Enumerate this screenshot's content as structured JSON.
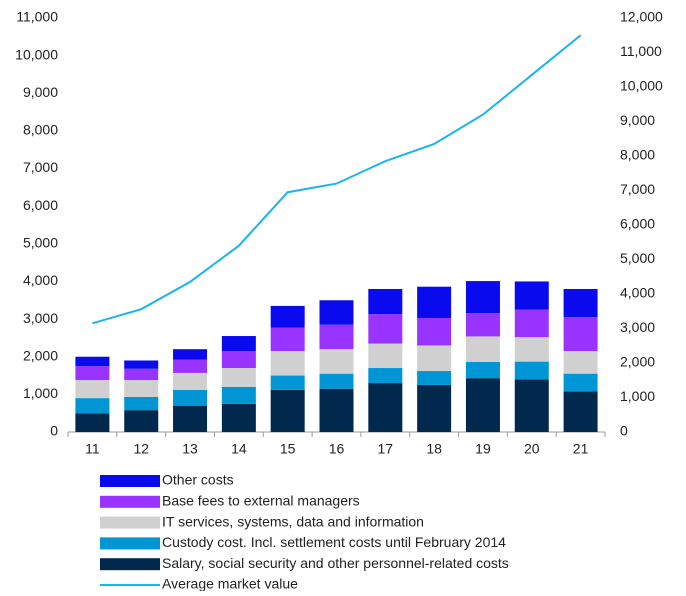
{
  "chart_data": {
    "type": "bar",
    "stacked": true,
    "categories": [
      "11",
      "12",
      "13",
      "14",
      "15",
      "16",
      "17",
      "18",
      "19",
      "20",
      "21"
    ],
    "series": [
      {
        "name": "Salary, social security and other personnel-related costs",
        "color": "#00294d",
        "values": [
          500,
          580,
          700,
          750,
          1120,
          1150,
          1300,
          1250,
          1430,
          1400,
          1080
        ]
      },
      {
        "name": "Custody cost. Incl. settlement costs until February 2014",
        "color": "#0096d6",
        "values": [
          400,
          350,
          420,
          450,
          380,
          400,
          400,
          370,
          430,
          470,
          470
        ]
      },
      {
        "name": "IT services, systems, data and information",
        "color": "#d0d0d0",
        "values": [
          480,
          450,
          450,
          500,
          650,
          650,
          650,
          680,
          680,
          650,
          600
        ]
      },
      {
        "name": "Base fees to external managers",
        "color": "#9933ff",
        "values": [
          370,
          300,
          350,
          450,
          620,
          650,
          780,
          730,
          620,
          730,
          900
        ]
      },
      {
        "name": "Other costs",
        "color": "#0a0aef",
        "values": [
          250,
          220,
          280,
          400,
          580,
          650,
          670,
          830,
          850,
          750,
          750
        ]
      },
      {
        "name": "Average market value",
        "color": "#19b4ef",
        "type": "line",
        "axis": "y2",
        "values": [
          3150,
          3560,
          4350,
          5400,
          6950,
          7200,
          7850,
          8350,
          9200,
          10350,
          11500
        ]
      }
    ],
    "ylim": [
      0,
      11000
    ],
    "yticks": [
      0,
      {
        "value": 1000,
        "label": "1,000"
      },
      {
        "value": 2000,
        "label": "2,000"
      },
      {
        "value": 3000,
        "label": "3,000"
      },
      {
        "value": 4000,
        "label": "4,000"
      },
      {
        "value": 5000,
        "label": "5,000"
      },
      {
        "value": 6000,
        "label": "6,000"
      },
      {
        "value": 7000,
        "label": "7,000"
      },
      {
        "value": 8000,
        "label": "8,000"
      },
      {
        "value": 9000,
        "label": "9,000"
      },
      {
        "value": 10000,
        "label": "10,000"
      },
      {
        "value": 11000,
        "label": "11,000"
      }
    ],
    "y2lim": [
      0,
      12000
    ],
    "y2ticks": [
      0,
      {
        "value": 1000,
        "label": "1,000"
      },
      {
        "value": 2000,
        "label": "2,000"
      },
      {
        "value": 3000,
        "label": "3,000"
      },
      {
        "value": 4000,
        "label": "4,000"
      },
      {
        "value": 5000,
        "label": "5,000"
      },
      {
        "value": 6000,
        "label": "6,000"
      },
      {
        "value": 7000,
        "label": "7,000"
      },
      {
        "value": 8000,
        "label": "8,000"
      },
      {
        "value": 9000,
        "label": "9,000"
      },
      {
        "value": 10000,
        "label": "10,000"
      },
      {
        "value": 11000,
        "label": "11,000"
      },
      {
        "value": 12000,
        "label": "12,000"
      }
    ],
    "grid": false
  }
}
